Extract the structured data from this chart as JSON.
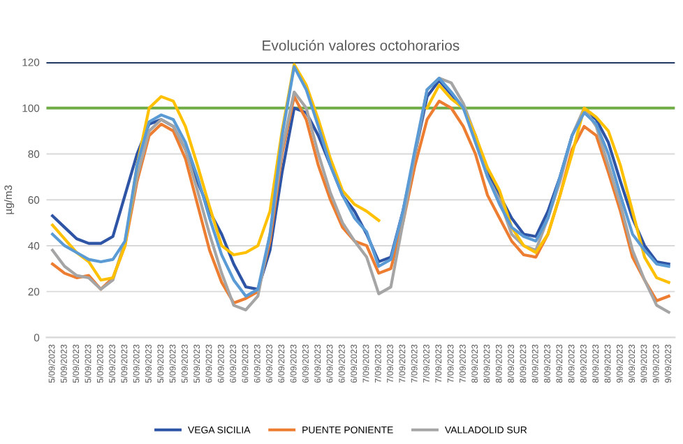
{
  "chart_data": {
    "type": "line",
    "title": "Evolución valores octohorarios",
    "ylabel": "µg/m3",
    "categories": [
      "5/09/2023",
      "5/09/2023",
      "5/09/2023",
      "5/09/2023",
      "5/09/2023",
      "5/09/2023",
      "5/09/2023",
      "5/09/2023",
      "5/09/2023",
      "5/09/2023",
      "5/09/2023",
      "5/09/2023",
      "5/09/2023",
      "6/09/2023",
      "6/09/2023",
      "6/09/2023",
      "6/09/2023",
      "6/09/2023",
      "6/09/2023",
      "6/09/2023",
      "6/09/2023",
      "6/09/2023",
      "6/09/2023",
      "6/09/2023",
      "6/09/2023",
      "6/09/2023",
      "7/09/2023",
      "7/09/2023",
      "7/09/2023",
      "7/09/2023",
      "7/09/2023",
      "7/09/2023",
      "7/09/2023",
      "7/09/2023",
      "7/09/2023",
      "8/09/2023",
      "8/09/2023",
      "8/09/2023",
      "8/09/2023",
      "8/09/2023",
      "8/09/2023",
      "8/09/2023",
      "8/09/2023",
      "8/09/2023",
      "8/09/2023",
      "8/09/2023",
      "8/09/2023",
      "9/09/2023",
      "9/09/2023",
      "9/09/2023",
      "9/09/2023",
      "9/09/2023"
    ],
    "series": [
      {
        "name": "VEGA SICILIA",
        "color": "#2e54a6",
        "values": [
          53,
          48,
          43,
          41,
          41,
          44,
          62,
          80,
          93,
          95,
          92,
          82,
          68,
          55,
          45,
          32,
          22,
          21,
          38,
          72,
          100,
          98,
          88,
          75,
          62,
          55,
          45,
          33,
          35,
          55,
          80,
          105,
          112,
          106,
          100,
          88,
          72,
          62,
          52,
          45,
          44,
          55,
          70,
          88,
          99,
          95,
          85,
          68,
          52,
          40,
          33,
          32
        ]
      },
      {
        "name": "PUENTE PONIENTE",
        "color": "#ed7d31",
        "values": [
          32,
          28,
          26,
          27,
          21,
          26,
          40,
          68,
          88,
          93,
          90,
          78,
          58,
          38,
          24,
          15,
          17,
          20,
          42,
          80,
          105,
          95,
          75,
          60,
          48,
          42,
          40,
          28,
          30,
          50,
          75,
          95,
          103,
          100,
          92,
          80,
          62,
          52,
          42,
          36,
          35,
          45,
          62,
          82,
          92,
          88,
          72,
          55,
          35,
          25,
          16,
          18
        ]
      },
      {
        "name": "VALLADOLID SUR",
        "color": "#a5a5a5",
        "values": [
          38,
          31,
          27,
          26,
          21,
          25,
          42,
          70,
          90,
          95,
          92,
          82,
          64,
          45,
          28,
          14,
          12,
          18,
          45,
          82,
          107,
          100,
          80,
          63,
          50,
          42,
          35,
          19,
          22,
          50,
          80,
          108,
          113,
          111,
          102,
          88,
          70,
          60,
          45,
          40,
          38,
          52,
          68,
          88,
          100,
          92,
          75,
          58,
          38,
          25,
          14,
          11
        ]
      },
      {
        "color": "#ffc000",
        "values": [
          49,
          43,
          37,
          33,
          25,
          26,
          40,
          75,
          100,
          105,
          103,
          92,
          75,
          57,
          40,
          36,
          37,
          40,
          55,
          90,
          119,
          110,
          95,
          78,
          64,
          58,
          55,
          51,
          null,
          null,
          null,
          100,
          110,
          104,
          100,
          88,
          74,
          64,
          48,
          40,
          37,
          45,
          62,
          80,
          100,
          96,
          90,
          75,
          55,
          35,
          26,
          24
        ]
      },
      {
        "color": "#5b9bd5",
        "values": [
          45,
          40,
          37,
          34,
          33,
          34,
          42,
          75,
          94,
          97,
          95,
          85,
          70,
          52,
          36,
          25,
          18,
          21,
          45,
          88,
          118,
          108,
          92,
          75,
          62,
          52,
          46,
          31,
          34,
          55,
          82,
          108,
          113,
          107,
          100,
          85,
          70,
          58,
          48,
          44,
          42,
          52,
          70,
          88,
          98,
          93,
          80,
          62,
          45,
          38,
          32,
          31
        ]
      }
    ],
    "ylim": [
      0,
      120
    ],
    "yticks": [
      0,
      20,
      40,
      60,
      80,
      100,
      120
    ],
    "grid": "y",
    "legend": "bottom",
    "line_style": "solid",
    "marker": "none",
    "ref_lines": [
      {
        "axis": "y",
        "value": 120,
        "color": "#1f3864"
      },
      {
        "axis": "y",
        "value": 100,
        "color": "#70ad47"
      }
    ]
  }
}
